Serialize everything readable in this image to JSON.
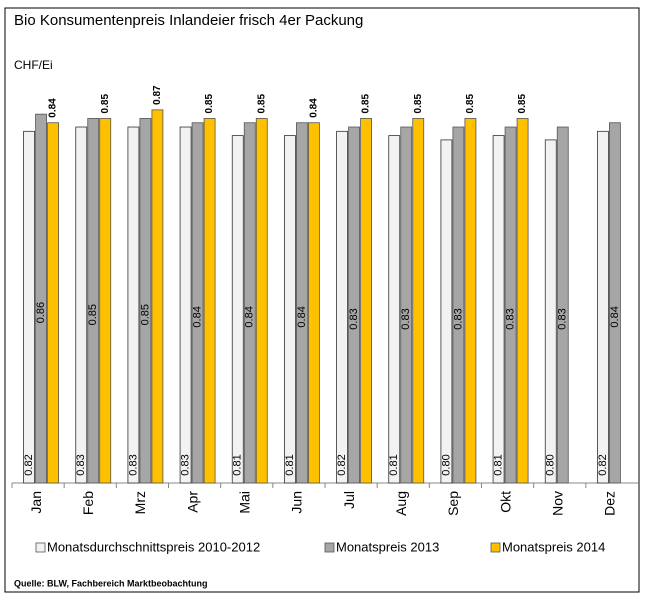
{
  "chart_data": {
    "type": "bar",
    "title": "Bio Konsumentenpreis Inlandeier frisch 4er Packung",
    "y_label": "CHF/Ei",
    "source": "Quelle: BLW, Fachbereich Marktbeobachtung",
    "categories": [
      "Jan",
      "Feb",
      "Mrz",
      "Apr",
      "Mai",
      "Jun",
      "Jul",
      "Aug",
      "Sep",
      "Okt",
      "Nov",
      "Dez"
    ],
    "ylim": [
      0,
      0.9
    ],
    "series": [
      {
        "name": "Monatsdurchschnittspreis 2010-2012",
        "color": "#f2f2f2",
        "values": [
          0.82,
          0.83,
          0.83,
          0.83,
          0.81,
          0.81,
          0.82,
          0.81,
          0.8,
          0.81,
          0.8,
          0.82
        ],
        "value_labels": [
          "0.82",
          "0.83",
          "0.83",
          "0.83",
          "0.81",
          "0.81",
          "0.82",
          "0.81",
          "0.80",
          "0.81",
          "0.80",
          "0.82"
        ]
      },
      {
        "name": "Monatspreis 2013",
        "color": "#a6a6a6",
        "values": [
          0.86,
          0.85,
          0.85,
          0.84,
          0.84,
          0.84,
          0.83,
          0.83,
          0.83,
          0.83,
          0.83,
          0.84
        ],
        "value_labels": [
          "0.86",
          "0.85",
          "0.85",
          "0.84",
          "0.84",
          "0.84",
          "0.83",
          "0.83",
          "0.83",
          "0.83",
          "0.83",
          "0.84"
        ]
      },
      {
        "name": "Monatspreis 2014",
        "color": "#ffc000",
        "values": [
          0.84,
          0.85,
          0.87,
          0.85,
          0.85,
          0.84,
          0.85,
          0.85,
          0.85,
          0.85,
          null,
          null
        ],
        "value_labels": [
          "0.84",
          "0.85",
          "0.87",
          "0.85",
          "0.85",
          "0.84",
          "0.85",
          "0.85",
          "0.85",
          "0.85",
          null,
          null
        ]
      }
    ]
  }
}
